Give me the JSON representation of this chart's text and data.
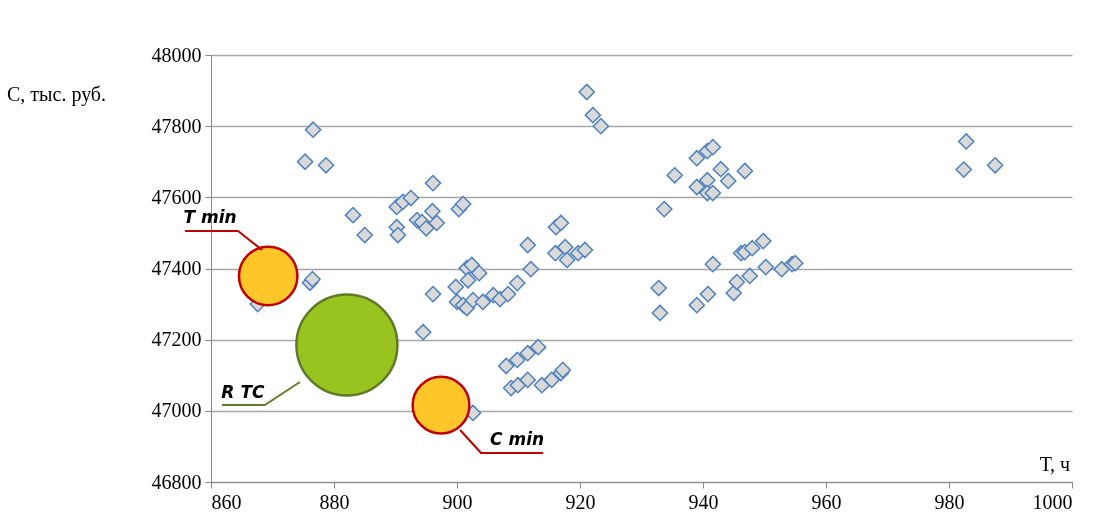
{
  "chart_data": {
    "type": "scatter",
    "xlabel": "Т, ч",
    "ylabel": "С, тыс. руб.",
    "xlim": [
      860,
      1000
    ],
    "xticks": [
      860,
      880,
      900,
      920,
      940,
      960,
      980,
      1000
    ],
    "ylim": [
      46800,
      48000
    ],
    "yticks": [
      46800,
      47000,
      47200,
      47400,
      47600,
      47800,
      48000
    ],
    "grid": "y",
    "series": [
      {
        "marker": "diamond",
        "color": "#d9d9d9",
        "x": [
          875.3,
          876.6,
          878.7,
          876.1,
          876.5,
          867.6,
          883.1,
          885.0,
          890.2,
          891.2,
          892.5,
          890.2,
          890.4,
          896.1,
          893.5,
          894.3,
          895.0,
          896.0,
          896.7,
          896.1,
          894.5,
          900.3,
          901.0,
          899.8,
          901.6,
          902.4,
          903.6,
          901.8,
          900.0,
          901.0,
          901.6,
          902.6,
          904.2,
          905.9,
          907.0,
          908.3,
          909.8,
          912.0,
          911.5,
          916.1,
          916.9,
          916.0,
          917.6,
          917.9,
          919.7,
          920.8,
          908.0,
          909.8,
          911.5,
          913.2,
          908.8,
          909.9,
          911.5,
          913.8,
          915.4,
          916.9,
          917.2,
          902.6,
          935.4,
          933.7,
          932.8,
          933.0,
          921.1,
          922.1,
          923.4,
          939.0,
          940.7,
          941.6,
          939.0,
          940.7,
          940.7,
          941.6,
          942.9,
          944.1,
          946.8,
          941.6,
          940.8,
          939.0,
          945.0,
          945.5,
          947.6,
          946.2,
          946.8,
          948.0,
          949.8,
          950.2,
          952.8,
          954.5,
          955.0,
          982.8,
          982.4,
          987.5
        ],
        "values": [
          47700,
          47790,
          47690,
          47360,
          47370,
          47300,
          47550,
          47494,
          47573,
          47587,
          47598,
          47516,
          47494,
          47640,
          47536,
          47530,
          47513,
          47561,
          47528,
          47328,
          47221,
          47567,
          47581,
          47348,
          47401,
          47410,
          47387,
          47367,
          47306,
          47297,
          47289,
          47311,
          47306,
          47325,
          47314,
          47328,
          47359,
          47398,
          47466,
          47516,
          47528,
          47443,
          47460,
          47424,
          47443,
          47452,
          47126,
          47143,
          47162,
          47179,
          47064,
          47072,
          47087,
          47072,
          47087,
          47106,
          47115,
          46994,
          47662,
          47567,
          47345,
          47275,
          47896,
          47831,
          47800,
          47710,
          47730,
          47741,
          47629,
          47648,
          47612,
          47612,
          47679,
          47646,
          47674,
          47412,
          47328,
          47297,
          47331,
          47362,
          47379,
          47443,
          47446,
          47457,
          47477,
          47404,
          47398,
          47412,
          47415,
          47757,
          47678,
          47690
        ]
      },
      {
        "type": "bubble",
        "x": [
          869.3,
          882.1,
          897.4
        ],
        "values": [
          47379,
          47185,
          47016
        ],
        "sizes": [
          0.335,
          1,
          0.315
        ],
        "colors": [
          "#ffc62a",
          "#99c31f",
          "#ffc62a"
        ]
      }
    ],
    "annotations": [
      {
        "text": "T min",
        "x": 868.3,
        "y": 47452
      },
      "R TC",
      {
        "text": "C min",
        "x": 900.5,
        "y": 46946
      }
    ]
  }
}
